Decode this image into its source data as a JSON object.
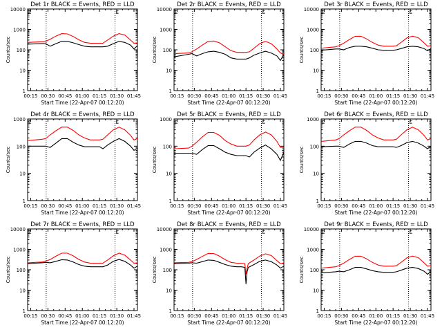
{
  "shared": {
    "title_suffix": "BLACK = Events, RED = LLD",
    "xlabel": "Start Time (22-Apr-07 00:12:20)",
    "ylabel": "Counts/sec",
    "x_ticks": [
      "00:15",
      "00:30",
      "00:45",
      "01:00",
      "01:15",
      "01:30",
      "01:45"
    ],
    "x_tick_minutes": [
      15,
      30,
      45,
      60,
      75,
      90,
      105
    ],
    "x_range_minutes": [
      12.33,
      108
    ],
    "dotted_vlines_minutes": [
      28.5,
      88.5
    ],
    "corner_mark": "E",
    "colors": {
      "events": "#000000",
      "lld": "#ff0000",
      "axes": "#000000"
    }
  },
  "chart_data": [
    {
      "type": "line",
      "title": "Det 1r BLACK = Events, RED = LLD",
      "yscale": "log",
      "ylim": [
        1,
        10000
      ],
      "y_ticks": [
        "1",
        "10",
        "100",
        "1000",
        "10000"
      ],
      "x": [
        12.3,
        25,
        28,
        32,
        37,
        42,
        47,
        52,
        57,
        62,
        67,
        71,
        75,
        78,
        82,
        87,
        92,
        97,
        102,
        105,
        108
      ],
      "series": [
        {
          "name": "Events",
          "values": [
            190,
            200,
            200,
            150,
            200,
            260,
            260,
            220,
            180,
            150,
            140,
            140,
            140,
            140,
            150,
            200,
            260,
            230,
            170,
            110,
            160
          ]
        },
        {
          "name": "LLD",
          "values": [
            230,
            250,
            260,
            330,
            470,
            620,
            600,
            450,
            310,
            230,
            210,
            210,
            210,
            210,
            300,
            470,
            620,
            530,
            300,
            210,
            220
          ]
        }
      ]
    },
    {
      "type": "line",
      "title": "Det 2r BLACK = Events, RED = LLD",
      "yscale": "log",
      "ylim": [
        1,
        10000
      ],
      "y_ticks": [
        "1",
        "10",
        "100",
        "1000",
        "10000"
      ],
      "x": [
        12.3,
        25,
        28,
        32,
        37,
        42,
        47,
        52,
        57,
        62,
        67,
        71,
        75,
        78,
        82,
        87,
        92,
        97,
        102,
        105,
        108
      ],
      "series": [
        {
          "name": "Events",
          "values": [
            45,
            60,
            65,
            50,
            65,
            80,
            85,
            75,
            60,
            40,
            35,
            35,
            35,
            40,
            55,
            70,
            85,
            70,
            50,
            30,
            60
          ]
        },
        {
          "name": "LLD",
          "values": [
            65,
            70,
            80,
            110,
            170,
            260,
            270,
            220,
            140,
            90,
            75,
            75,
            75,
            80,
            120,
            200,
            260,
            200,
            110,
            70,
            60
          ]
        }
      ]
    },
    {
      "type": "line",
      "title": "Det 3r BLACK = Events, RED = LLD",
      "yscale": "log",
      "ylim": [
        1,
        10000
      ],
      "y_ticks": [
        "1",
        "10",
        "100",
        "1000",
        "10000"
      ],
      "x": [
        12.3,
        25,
        28,
        32,
        37,
        42,
        47,
        52,
        57,
        62,
        67,
        71,
        75,
        78,
        82,
        87,
        92,
        97,
        102,
        105,
        108
      ],
      "series": [
        {
          "name": "Events",
          "values": [
            95,
            110,
            110,
            100,
            130,
            150,
            150,
            140,
            120,
            100,
            95,
            95,
            95,
            100,
            115,
            140,
            150,
            140,
            115,
            90,
            115
          ]
        },
        {
          "name": "LLD",
          "values": [
            120,
            140,
            160,
            210,
            320,
            460,
            460,
            340,
            230,
            170,
            150,
            150,
            150,
            160,
            230,
            380,
            470,
            390,
            220,
            150,
            160
          ]
        }
      ]
    },
    {
      "type": "line",
      "title": "Det 4r BLACK = Events, RED = LLD",
      "yscale": "log",
      "ylim": [
        1,
        1000
      ],
      "y_ticks": [
        "1",
        "10",
        "100",
        "1000"
      ],
      "x": [
        12.3,
        25,
        28,
        32,
        37,
        42,
        47,
        52,
        57,
        62,
        67,
        71,
        75,
        78,
        82,
        87,
        92,
        97,
        102,
        105,
        108
      ],
      "series": [
        {
          "name": "Events",
          "values": [
            100,
            100,
            100,
            90,
            130,
            190,
            190,
            140,
            110,
            95,
            95,
            95,
            95,
            80,
            110,
            150,
            190,
            150,
            100,
            70,
            85
          ]
        },
        {
          "name": "LLD",
          "values": [
            160,
            180,
            190,
            260,
            370,
            500,
            500,
            380,
            260,
            200,
            170,
            170,
            170,
            180,
            260,
            400,
            500,
            400,
            250,
            170,
            190
          ]
        }
      ]
    },
    {
      "type": "line",
      "title": "Det 5r BLACK = Events, RED = LLD",
      "yscale": "log",
      "ylim": [
        1,
        1000
      ],
      "y_ticks": [
        "1",
        "10",
        "100",
        "1000"
      ],
      "x": [
        12.3,
        25,
        28,
        32,
        37,
        42,
        47,
        52,
        57,
        62,
        67,
        71,
        75,
        78,
        82,
        87,
        92,
        97,
        102,
        105,
        108
      ],
      "series": [
        {
          "name": "Events",
          "values": [
            55,
            55,
            55,
            50,
            75,
            105,
            105,
            80,
            60,
            50,
            45,
            45,
            45,
            40,
            60,
            85,
            110,
            80,
            50,
            30,
            60
          ]
        },
        {
          "name": "LLD",
          "values": [
            80,
            85,
            100,
            140,
            220,
            320,
            320,
            250,
            160,
            120,
            100,
            100,
            100,
            110,
            170,
            260,
            330,
            260,
            150,
            90,
            90
          ]
        }
      ]
    },
    {
      "type": "line",
      "title": "Det 6r BLACK = Events, RED = LLD",
      "yscale": "log",
      "ylim": [
        1,
        1000
      ],
      "y_ticks": [
        "1",
        "10",
        "100",
        "1000"
      ],
      "x": [
        12.3,
        25,
        28,
        32,
        37,
        42,
        47,
        52,
        57,
        62,
        67,
        71,
        75,
        78,
        82,
        87,
        92,
        97,
        102,
        105,
        108
      ],
      "series": [
        {
          "name": "Events",
          "values": [
            95,
            100,
            100,
            90,
            120,
            150,
            150,
            130,
            105,
            95,
            95,
            95,
            95,
            90,
            105,
            135,
            150,
            130,
            100,
            80,
            100
          ]
        },
        {
          "name": "LLD",
          "values": [
            150,
            170,
            190,
            260,
            370,
            500,
            500,
            380,
            260,
            200,
            170,
            170,
            170,
            180,
            260,
            400,
            500,
            400,
            250,
            170,
            190
          ]
        }
      ]
    },
    {
      "type": "line",
      "title": "Det 7r BLACK = Events, RED = LLD",
      "yscale": "log",
      "ylim": [
        1,
        10000
      ],
      "y_ticks": [
        "1",
        "10",
        "100",
        "1000",
        "10000"
      ],
      "x": [
        12.3,
        25,
        28,
        32,
        37,
        42,
        47,
        52,
        57,
        62,
        67,
        71,
        75,
        78,
        82,
        87,
        92,
        97,
        102,
        105,
        108
      ],
      "series": [
        {
          "name": "Events",
          "values": [
            200,
            220,
            230,
            220,
            260,
            310,
            300,
            240,
            180,
            150,
            140,
            140,
            140,
            140,
            170,
            260,
            320,
            260,
            170,
            120,
            150
          ]
        },
        {
          "name": "LLD",
          "values": [
            220,
            240,
            260,
            320,
            460,
            650,
            650,
            480,
            320,
            240,
            210,
            210,
            210,
            210,
            300,
            480,
            650,
            520,
            300,
            210,
            220
          ]
        }
      ]
    },
    {
      "type": "line",
      "title": "Det 8r BLACK = Events, RED = LLD",
      "yscale": "log",
      "ylim": [
        1,
        10000
      ],
      "y_ticks": [
        "1",
        "10",
        "100",
        "1000",
        "10000"
      ],
      "x": [
        12.3,
        25,
        28,
        32,
        37,
        42,
        47,
        52,
        57,
        62,
        67,
        71,
        74,
        75,
        76,
        77,
        82,
        87,
        92,
        97,
        102,
        105,
        108
      ],
      "series": [
        {
          "name": "Events",
          "values": [
            200,
            210,
            220,
            210,
            250,
            300,
            290,
            230,
            180,
            150,
            140,
            140,
            130,
            20,
            80,
            130,
            180,
            260,
            300,
            250,
            170,
            120,
            150
          ]
        },
        {
          "name": "LLD",
          "values": [
            220,
            230,
            250,
            320,
            450,
            630,
            620,
            460,
            310,
            230,
            210,
            210,
            200,
            60,
            120,
            200,
            300,
            470,
            600,
            500,
            280,
            200,
            220
          ]
        }
      ]
    },
    {
      "type": "line",
      "title": "Det 9r BLACK = Events, RED = LLD",
      "yscale": "log",
      "ylim": [
        1,
        10000
      ],
      "y_ticks": [
        "1",
        "10",
        "100",
        "1000",
        "10000"
      ],
      "x": [
        12.3,
        25,
        28,
        32,
        37,
        42,
        47,
        52,
        57,
        62,
        67,
        71,
        75,
        78,
        82,
        87,
        92,
        97,
        102,
        105,
        108
      ],
      "series": [
        {
          "name": "Events",
          "values": [
            70,
            80,
            85,
            80,
            100,
            130,
            130,
            110,
            90,
            80,
            75,
            75,
            75,
            80,
            95,
            120,
            130,
            115,
            85,
            60,
            80
          ]
        },
        {
          "name": "LLD",
          "values": [
            120,
            140,
            160,
            210,
            320,
            460,
            460,
            340,
            230,
            170,
            150,
            150,
            150,
            160,
            230,
            380,
            470,
            390,
            220,
            150,
            160
          ]
        }
      ]
    }
  ]
}
